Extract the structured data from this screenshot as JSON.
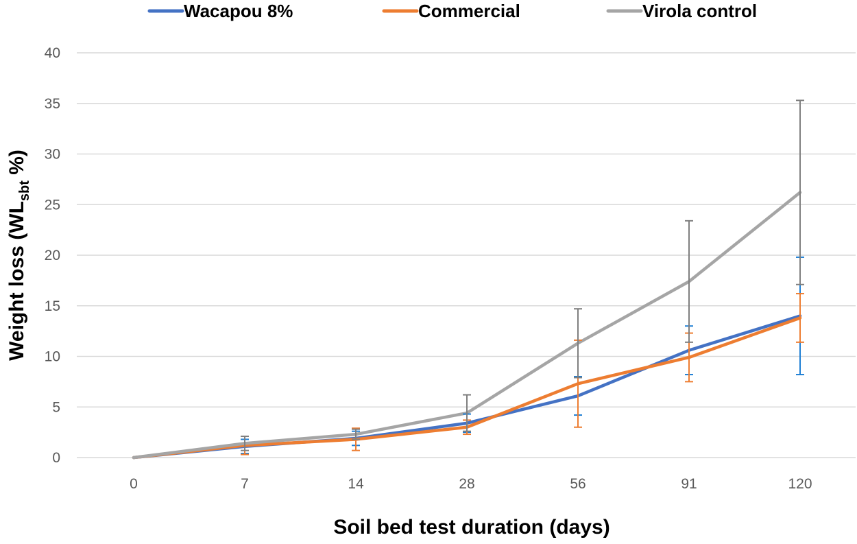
{
  "chart_data": {
    "type": "line",
    "title": "",
    "xlabel": "Soil bed test duration (days)",
    "ylabel": {
      "prefix": "Weight loss (WL",
      "subscript": "sbt",
      "suffix": " %)"
    },
    "categories": [
      "0",
      "7",
      "14",
      "28",
      "56",
      "91",
      "120"
    ],
    "ylim": [
      0,
      40
    ],
    "yticks": [
      0,
      5,
      10,
      15,
      20,
      25,
      30,
      35,
      40
    ],
    "grid": "horizontal",
    "legend_position": "top",
    "series": [
      {
        "name": "Wacapou 8%",
        "color": "#4472C4",
        "error_color": "#1F7FD4",
        "values": [
          0,
          1.1,
          1.9,
          3.4,
          6.1,
          10.6,
          14.0
        ],
        "error": [
          0,
          0.7,
          0.7,
          0.9,
          1.9,
          2.4,
          5.8
        ]
      },
      {
        "name": "Commercial",
        "color": "#ED7D31",
        "error_color": "#ED7D31",
        "values": [
          0,
          1.2,
          1.8,
          3.0,
          7.3,
          9.9,
          13.8
        ],
        "error": [
          0,
          0.9,
          1.1,
          0.7,
          4.3,
          2.4,
          2.4
        ]
      },
      {
        "name": "Virola control",
        "color": "#A5A5A5",
        "error_color": "#7F7F7F",
        "values": [
          0,
          1.4,
          2.3,
          4.4,
          11.3,
          17.4,
          26.2
        ],
        "error": [
          0,
          0.7,
          0.5,
          1.8,
          3.4,
          6.0,
          9.1
        ]
      }
    ]
  }
}
